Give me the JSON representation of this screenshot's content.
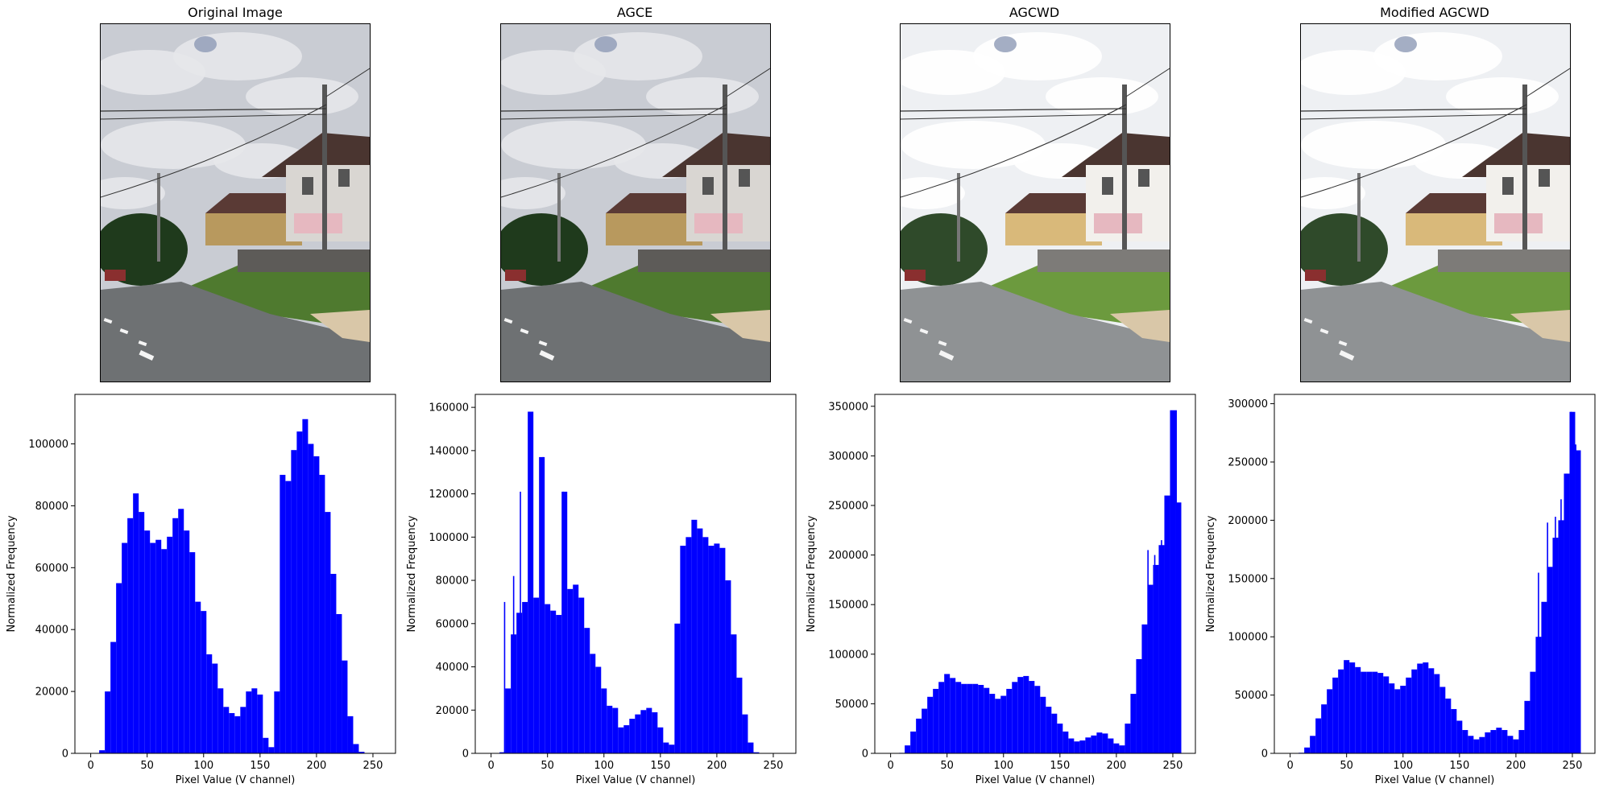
{
  "figure": {
    "panels": [
      {
        "title": "Original Image"
      },
      {
        "title": "AGCE"
      },
      {
        "title": "AGCWD"
      },
      {
        "title": "Modified AGCWD"
      }
    ]
  },
  "colors": {
    "bar": "#0000ff",
    "sky_original": "#c9ccd3",
    "sky_agcwd": "#eef0f3"
  },
  "chart_data": [
    {
      "type": "bar",
      "title": "",
      "xlabel": "Pixel Value (V channel)",
      "ylabel": "Normalized Frequency",
      "xlim": [
        -14,
        270
      ],
      "ylim": [
        0,
        116000
      ],
      "xticks": [
        0,
        50,
        100,
        150,
        200,
        250
      ],
      "yticks": [
        0,
        20000,
        40000,
        60000,
        80000,
        100000
      ],
      "grid": false,
      "series_color": "#0000ff",
      "x": [
        0,
        5,
        10,
        15,
        20,
        25,
        30,
        35,
        40,
        45,
        50,
        55,
        60,
        65,
        70,
        75,
        80,
        85,
        90,
        95,
        100,
        105,
        110,
        115,
        120,
        125,
        130,
        135,
        140,
        145,
        150,
        155,
        160,
        165,
        170,
        175,
        180,
        185,
        190,
        195,
        200,
        205,
        210,
        215,
        220,
        225,
        230,
        235,
        240,
        245,
        250,
        255
      ],
      "values": [
        0,
        0,
        1000,
        20000,
        36000,
        55000,
        68000,
        76000,
        84000,
        78000,
        72000,
        68000,
        69000,
        66000,
        70000,
        76000,
        79000,
        72000,
        65000,
        49000,
        46000,
        32000,
        29000,
        21000,
        15000,
        13000,
        12000,
        15000,
        20000,
        21000,
        19000,
        5000,
        2000,
        20000,
        90000,
        88000,
        98000,
        104000,
        108000,
        100000,
        96000,
        90000,
        78000,
        58000,
        45000,
        30000,
        12000,
        3000,
        500,
        0,
        0,
        0
      ]
    },
    {
      "type": "bar",
      "title": "",
      "xlabel": "Pixel Value (V channel)",
      "ylabel": "Normalized Frequency",
      "xlim": [
        -14,
        270
      ],
      "ylim": [
        0,
        166000
      ],
      "xticks": [
        0,
        50,
        100,
        150,
        200,
        250
      ],
      "yticks": [
        0,
        20000,
        40000,
        60000,
        80000,
        100000,
        120000,
        140000,
        160000
      ],
      "grid": false,
      "series_color": "#0000ff",
      "x": [
        0,
        5,
        10,
        15,
        20,
        25,
        30,
        35,
        40,
        45,
        50,
        55,
        60,
        65,
        70,
        75,
        80,
        85,
        90,
        95,
        100,
        105,
        110,
        115,
        120,
        125,
        130,
        135,
        140,
        145,
        150,
        155,
        160,
        165,
        170,
        175,
        180,
        185,
        190,
        195,
        200,
        205,
        210,
        215,
        220,
        225,
        230,
        235,
        240,
        245,
        250,
        255
      ],
      "values": [
        0,
        0,
        500,
        30000,
        55000,
        65000,
        70000,
        158000,
        72000,
        137000,
        69000,
        66000,
        64000,
        121000,
        76000,
        78000,
        72000,
        58000,
        46000,
        40000,
        30000,
        22000,
        21000,
        12000,
        13000,
        16000,
        18000,
        20000,
        21000,
        19000,
        12000,
        5000,
        4000,
        60000,
        96000,
        100000,
        108000,
        104000,
        100000,
        96000,
        97000,
        95000,
        80000,
        55000,
        35000,
        18000,
        5000,
        500,
        0,
        0,
        0,
        0
      ],
      "spikes": [
        {
          "x": 12,
          "y": 70000
        },
        {
          "x": 20,
          "y": 82000
        },
        {
          "x": 26,
          "y": 121000
        },
        {
          "x": 34,
          "y": 158000
        },
        {
          "x": 46,
          "y": 137000
        },
        {
          "x": 64,
          "y": 121000
        }
      ]
    },
    {
      "type": "bar",
      "title": "",
      "xlabel": "Pixel Value (V channel)",
      "ylabel": "Normalized Frequency",
      "xlim": [
        -14,
        270
      ],
      "ylim": [
        0,
        362000
      ],
      "xticks": [
        0,
        50,
        100,
        150,
        200,
        250
      ],
      "yticks": [
        0,
        50000,
        100000,
        150000,
        200000,
        250000,
        300000,
        350000
      ],
      "grid": false,
      "series_color": "#0000ff",
      "x": [
        0,
        5,
        10,
        15,
        20,
        25,
        30,
        35,
        40,
        45,
        50,
        55,
        60,
        65,
        70,
        75,
        80,
        85,
        90,
        95,
        100,
        105,
        110,
        115,
        120,
        125,
        130,
        135,
        140,
        145,
        150,
        155,
        160,
        165,
        170,
        175,
        180,
        185,
        190,
        195,
        200,
        205,
        210,
        215,
        220,
        225,
        230,
        235,
        240,
        245,
        250,
        255
      ],
      "values": [
        0,
        0,
        500,
        8000,
        22000,
        35000,
        45000,
        57000,
        65000,
        72000,
        80000,
        76000,
        72000,
        70000,
        70000,
        70000,
        69000,
        66000,
        60000,
        55000,
        58000,
        65000,
        72000,
        77000,
        78000,
        73000,
        68000,
        57000,
        47000,
        40000,
        30000,
        22000,
        15000,
        12000,
        13000,
        16000,
        18000,
        21000,
        20000,
        15000,
        10000,
        8000,
        30000,
        60000,
        95000,
        130000,
        170000,
        190000,
        210000,
        260000,
        346000,
        253000
      ],
      "spikes": [
        {
          "x": 228,
          "y": 205000
        },
        {
          "x": 234,
          "y": 200000
        },
        {
          "x": 240,
          "y": 215000
        },
        {
          "x": 245,
          "y": 235000
        },
        {
          "x": 249,
          "y": 262000
        },
        {
          "x": 253,
          "y": 346000
        }
      ]
    },
    {
      "type": "bar",
      "title": "",
      "xlabel": "Pixel Value (V channel)",
      "ylabel": "Normalized Frequency",
      "xlim": [
        -14,
        270
      ],
      "ylim": [
        0,
        308000
      ],
      "xticks": [
        0,
        50,
        100,
        150,
        200,
        250
      ],
      "yticks": [
        0,
        50000,
        100000,
        150000,
        200000,
        250000,
        300000
      ],
      "grid": false,
      "series_color": "#0000ff",
      "x": [
        0,
        5,
        10,
        15,
        20,
        25,
        30,
        35,
        40,
        45,
        50,
        55,
        60,
        65,
        70,
        75,
        80,
        85,
        90,
        95,
        100,
        105,
        110,
        115,
        120,
        125,
        130,
        135,
        140,
        145,
        150,
        155,
        160,
        165,
        170,
        175,
        180,
        185,
        190,
        195,
        200,
        205,
        210,
        215,
        220,
        225,
        230,
        235,
        240,
        245,
        250,
        255
      ],
      "values": [
        0,
        0,
        500,
        5000,
        15000,
        30000,
        42000,
        55000,
        65000,
        72000,
        80000,
        78000,
        74000,
        70000,
        70000,
        70000,
        69000,
        66000,
        60000,
        55000,
        58000,
        65000,
        72000,
        77000,
        78000,
        73000,
        68000,
        57000,
        47000,
        38000,
        28000,
        20000,
        15000,
        12000,
        14000,
        18000,
        20000,
        22000,
        20000,
        15000,
        12000,
        20000,
        45000,
        70000,
        100000,
        130000,
        160000,
        185000,
        200000,
        240000,
        293000,
        260000
      ],
      "spikes": [
        {
          "x": 220,
          "y": 155000
        },
        {
          "x": 228,
          "y": 198000
        },
        {
          "x": 235,
          "y": 203000
        },
        {
          "x": 240,
          "y": 218000
        },
        {
          "x": 245,
          "y": 240000
        },
        {
          "x": 249,
          "y": 293000
        },
        {
          "x": 253,
          "y": 265000
        }
      ]
    }
  ]
}
